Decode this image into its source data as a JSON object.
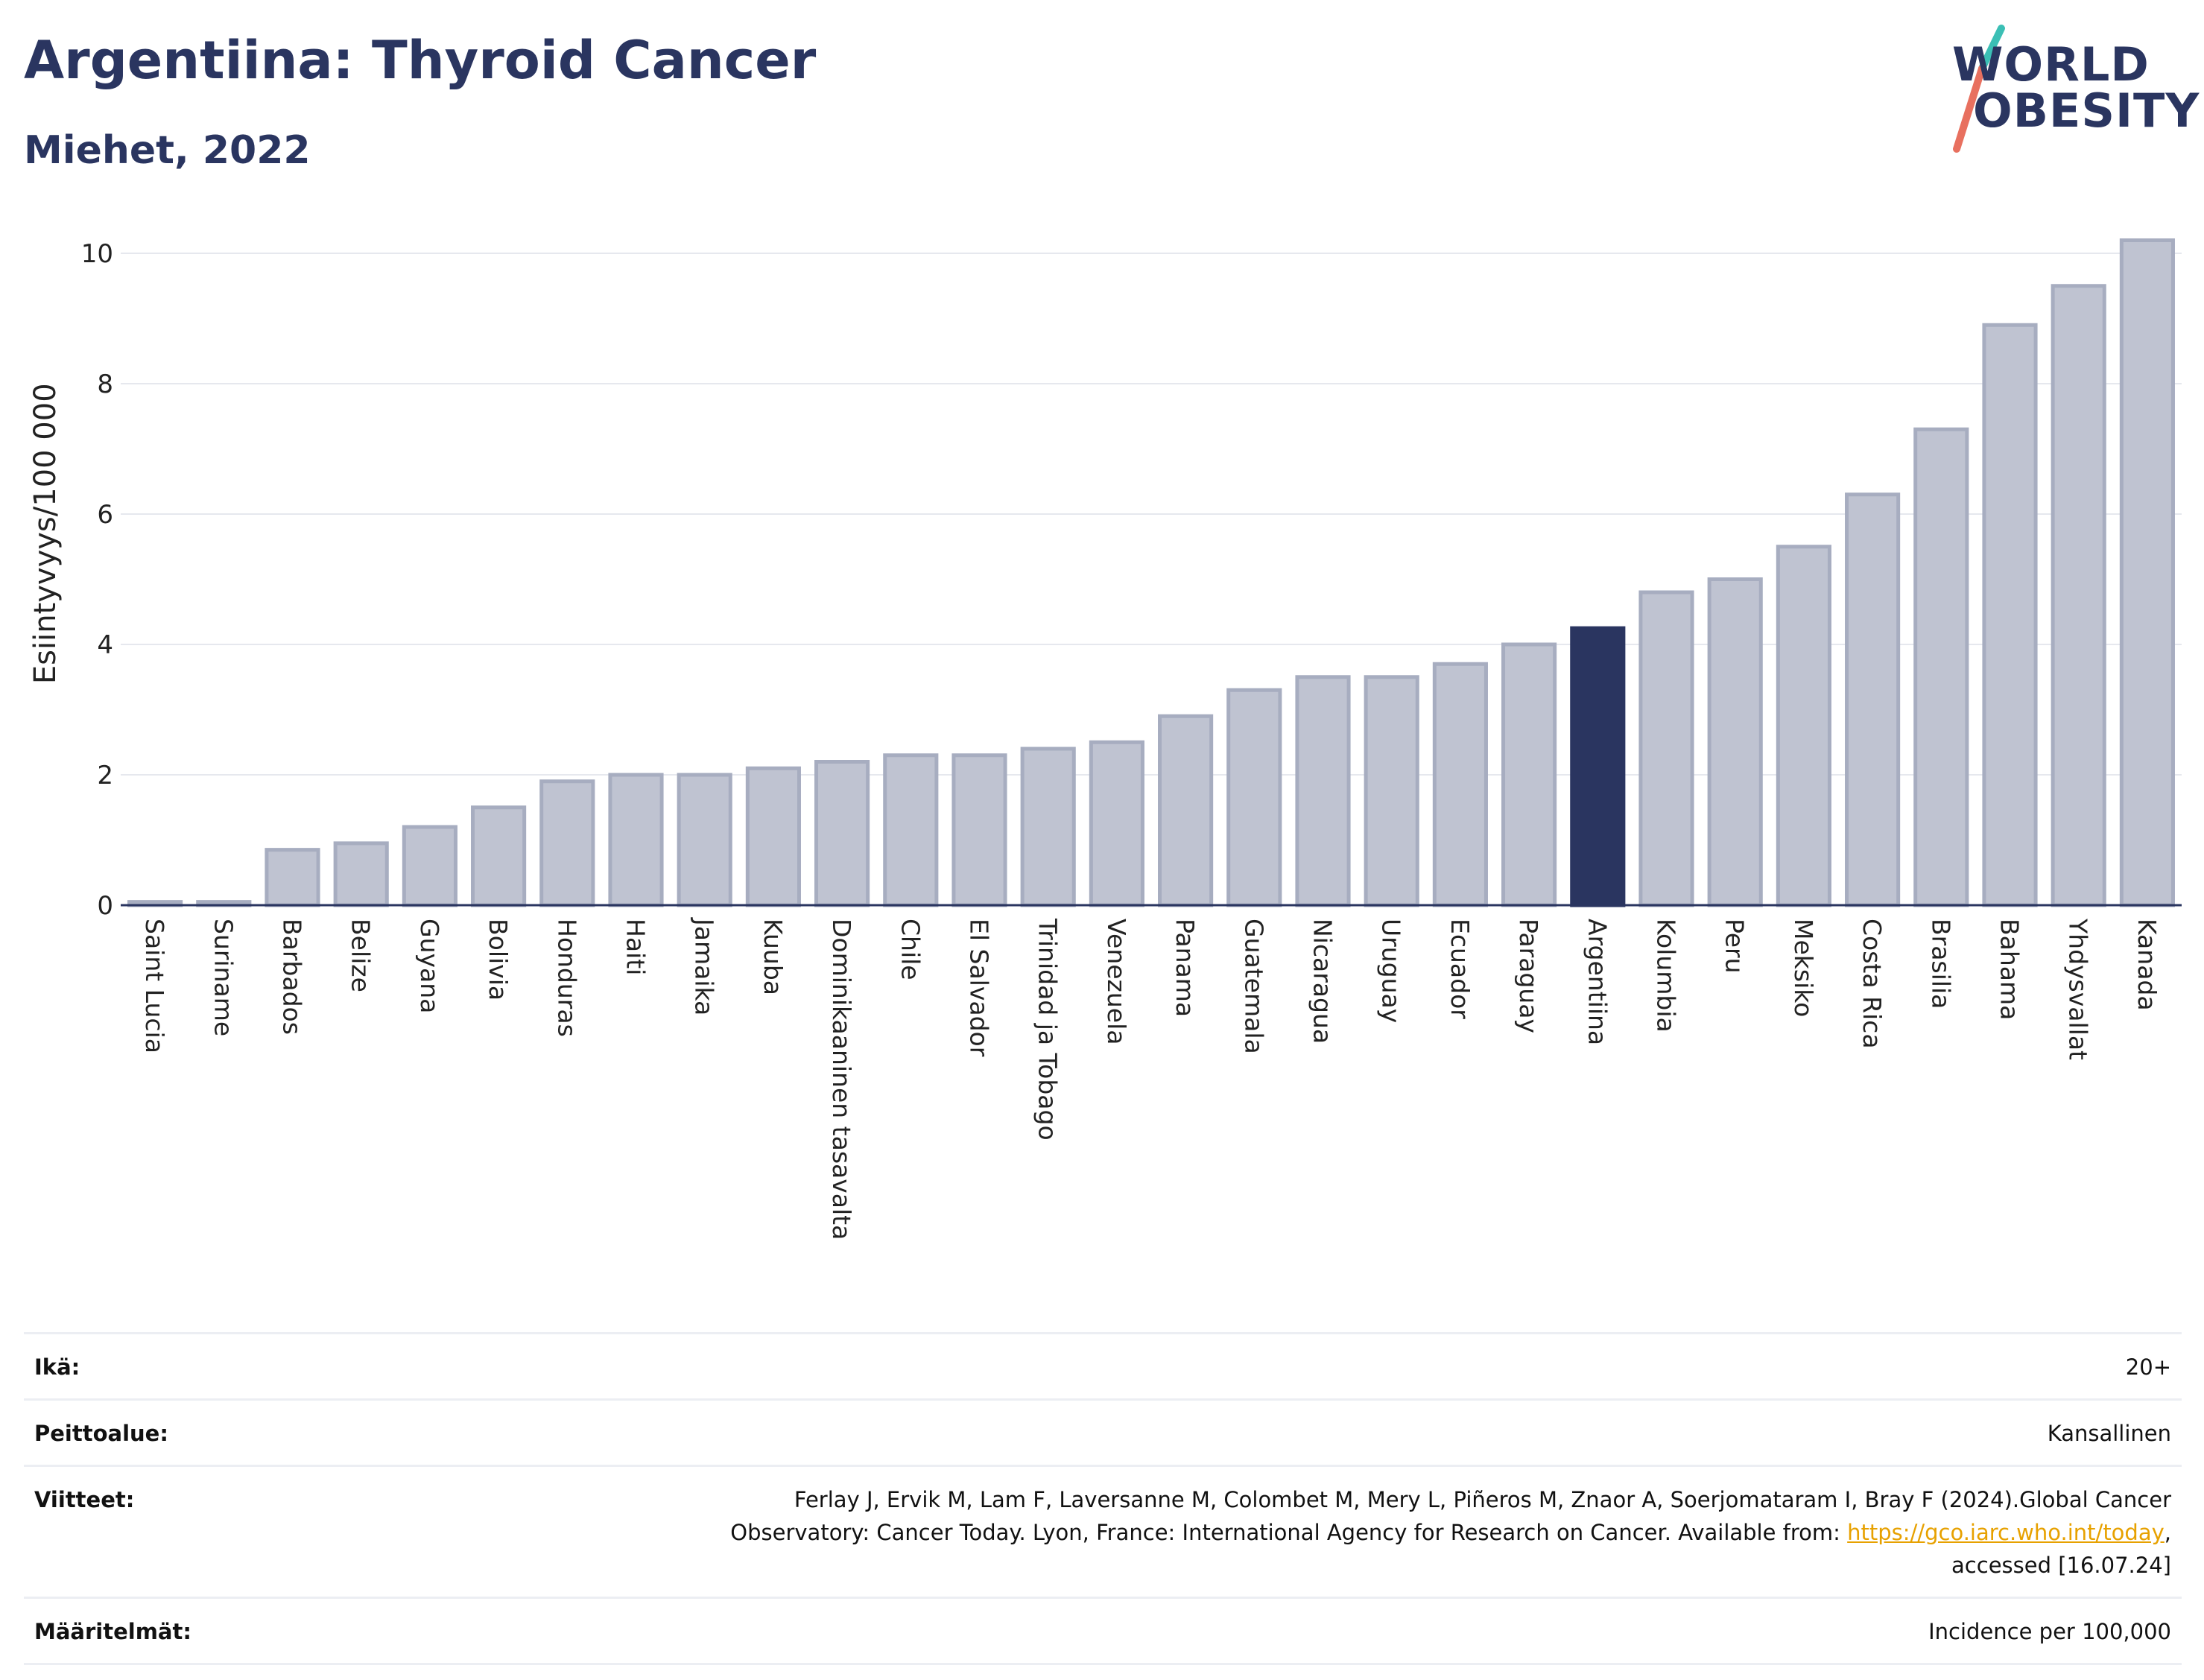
{
  "header": {
    "title": "Argentiina: Thyroid Cancer",
    "subtitle": "Miehet, 2022"
  },
  "logo": {
    "line1": "WORLD",
    "line2": "OBESITY",
    "colors": {
      "text": "#2a3560",
      "slash_top": "#3bbfb5",
      "slash_bottom": "#e8705f"
    }
  },
  "chart_data": {
    "type": "bar",
    "ylabel": "Esiintyvyys/100 000",
    "ylim": [
      0,
      10.5
    ],
    "yticks": [
      0,
      2,
      4,
      6,
      8,
      10
    ],
    "grid": true,
    "highlight": "Argentiina",
    "colors": {
      "bar": "#bfc3d1",
      "bar_edge": "#a7adc0",
      "highlight": "#2a3560",
      "grid": "#e6e8ee",
      "axis": "#2a3560"
    },
    "categories": [
      "Saint Lucia",
      "Suriname",
      "Barbados",
      "Belize",
      "Guyana",
      "Bolivia",
      "Honduras",
      "Haiti",
      "Jamaika",
      "Kuuba",
      "Dominikaaninen tasavalta",
      "Chile",
      "El Salvador",
      "Trinidad ja Tobago",
      "Venezuela",
      "Panama",
      "Guatemala",
      "Nicaragua",
      "Uruguay",
      "Ecuador",
      "Paraguay",
      "Argentiina",
      "Kolumbia",
      "Peru",
      "Meksiko",
      "Costa Rica",
      "Brasilia",
      "Bahama",
      "Yhdysvallat",
      "Kanada"
    ],
    "values": [
      0.05,
      0.05,
      0.85,
      0.95,
      1.2,
      1.5,
      1.9,
      2.0,
      2.0,
      2.1,
      2.2,
      2.3,
      2.3,
      2.4,
      2.5,
      2.9,
      3.3,
      3.5,
      3.5,
      3.7,
      4.0,
      4.25,
      4.8,
      5.0,
      5.5,
      6.3,
      7.3,
      8.9,
      9.5,
      10.2
    ]
  },
  "info": {
    "age_label": "Ikä:",
    "age_value": "20+",
    "coverage_label": "Peittoalue:",
    "coverage_value": "Kansallinen",
    "refs_label": "Viitteet:",
    "refs_line1": "Ferlay J, Ervik M, Lam F, Laversanne M, Colombet M, Mery L, Piñeros M, Znaor A, Soerjomataram I, Bray F (2024).Global Cancer",
    "refs_line2_pre": "Observatory: Cancer Today. Lyon, France: International Agency for Research on Cancer. Available from: ",
    "refs_link": "https://gco.iarc.who.int/today",
    "refs_line2_post": ",",
    "refs_line3": "accessed [16.07.24]",
    "defs_label": "Määritelmät:",
    "defs_value": "Incidence per 100,000"
  }
}
